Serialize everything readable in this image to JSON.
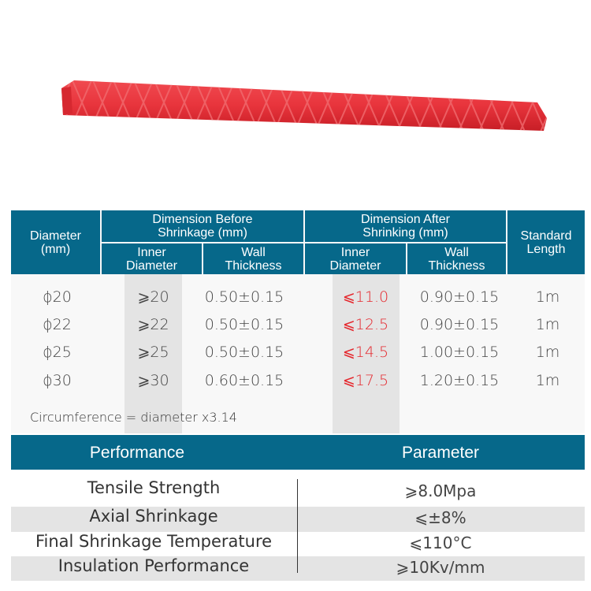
{
  "product_image": {
    "name": "red-heat-shrink-tube",
    "color": "#e8343c"
  },
  "spec_table": {
    "headers": {
      "diameter": "Diameter (mm)",
      "before": "Dimension Before Shrinkage (mm)",
      "after": "Dimension After Shrinking (mm)",
      "length": "Standard Length",
      "before_inner": "Inner Diameter",
      "before_wall": "Wall Thickness",
      "after_inner": "Inner Diameter",
      "after_wall": "Wall Thickness"
    },
    "rows": [
      {
        "diameter": "ϕ20",
        "before_inner": "⩾20",
        "before_wall": "0.50±0.15",
        "after_inner": "⩽11.0",
        "after_wall": "0.90±0.15",
        "length": "1m"
      },
      {
        "diameter": "ϕ22",
        "before_inner": "⩾22",
        "before_wall": "0.50±0.15",
        "after_inner": "⩽12.5",
        "after_wall": "0.90±0.15",
        "length": "1m"
      },
      {
        "diameter": "ϕ25",
        "before_inner": "⩾25",
        "before_wall": "0.50±0.15",
        "after_inner": "⩽14.5",
        "after_wall": "1.00±0.15",
        "length": "1m"
      },
      {
        "diameter": "ϕ30",
        "before_inner": "⩾30",
        "before_wall": "0.60±0.15",
        "after_inner": "⩽17.5",
        "after_wall": "1.20±0.15",
        "length": "1m"
      }
    ],
    "note": "Circumference = diameter x3.14"
  },
  "performance_table": {
    "headers": {
      "performance": "Performance",
      "parameter": "Parameter"
    },
    "rows": [
      {
        "performance": "Tensile Strength",
        "parameter": "⩾8.0Mpa"
      },
      {
        "performance": "Axial Shrinkage",
        "parameter": "⩽±8%"
      },
      {
        "performance": "Final Shrinkage Temperature",
        "parameter": "⩽110°C"
      },
      {
        "performance": "Insulation Performance",
        "parameter": "⩾10Kv/mm"
      }
    ]
  },
  "colors": {
    "header": "#06688a",
    "accent_red": "#e5262c",
    "band_gray": "#e4e4e4"
  }
}
